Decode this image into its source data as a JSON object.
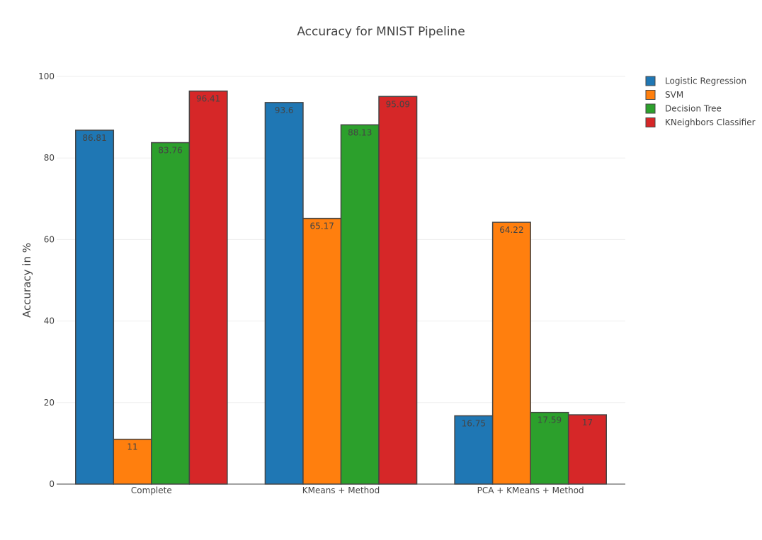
{
  "chart_data": {
    "type": "bar",
    "title": "Accuracy for MNIST Pipeline",
    "xlabel": "",
    "ylabel": "Accuracy in %",
    "ylim": [
      0,
      100
    ],
    "yticks": [
      0,
      20,
      40,
      60,
      80,
      100
    ],
    "grid": true,
    "legend_position": "top-right",
    "categories": [
      "Complete",
      "KMeans + Method",
      "PCA + KMeans + Method"
    ],
    "series": [
      {
        "name": "Logistic Regression",
        "color": "#1f77b4",
        "values": [
          86.81,
          93.6,
          16.75
        ],
        "labels": [
          "86.81",
          "93.6",
          "16.75"
        ]
      },
      {
        "name": "SVM",
        "color": "#ff7f0e",
        "values": [
          11,
          65.17,
          64.22
        ],
        "labels": [
          "11",
          "65.17",
          "64.22"
        ]
      },
      {
        "name": "Decision Tree",
        "color": "#2ca02c",
        "values": [
          83.76,
          88.13,
          17.59
        ],
        "labels": [
          "83.76",
          "88.13",
          "17.59"
        ]
      },
      {
        "name": "KNeighbors Classifier",
        "color": "#d62728",
        "values": [
          96.41,
          95.09,
          17
        ],
        "labels": [
          "96.41",
          "95.09",
          "17"
        ]
      }
    ]
  }
}
